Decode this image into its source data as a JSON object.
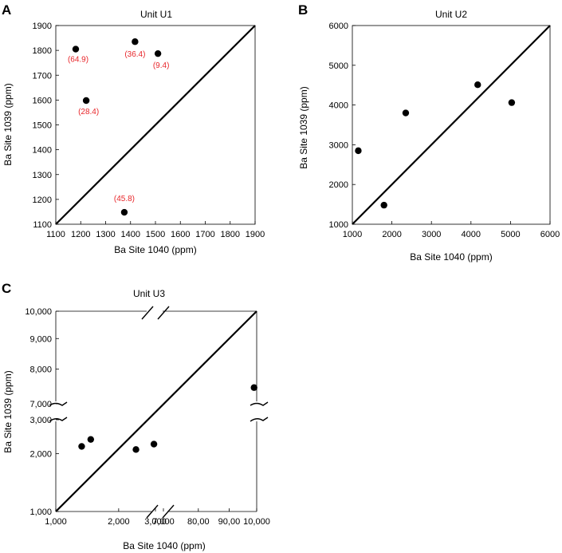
{
  "chart_data": [
    {
      "type": "scatter",
      "panel_letter": "A",
      "title": "Unit U1",
      "xlabel": "Ba Site 1040 (ppm)",
      "ylabel": "Ba Site 1039 (ppm)",
      "xlim": [
        1100,
        1900
      ],
      "ylim": [
        1100,
        1900
      ],
      "xticks": [
        "1100",
        "1200",
        "1300",
        "1400",
        "1500",
        "1600",
        "1700",
        "1800",
        "1900"
      ],
      "yticks": [
        "1100",
        "1200",
        "1300",
        "1400",
        "1500",
        "1600",
        "1700",
        "1800",
        "1900"
      ],
      "reference_line": "1:1",
      "series": [
        {
          "points": [
            {
              "x": 1180,
              "y": 1805,
              "label": "(64.9)"
            },
            {
              "x": 1222,
              "y": 1598,
              "label": "(28.4)"
            },
            {
              "x": 1418,
              "y": 1835,
              "label": "(36.4)"
            },
            {
              "x": 1510,
              "y": 1787,
              "label": "(9.4)"
            },
            {
              "x": 1375,
              "y": 1148,
              "label": "(45.8)"
            }
          ]
        }
      ],
      "annotation_color": "#e8262a"
    },
    {
      "type": "scatter",
      "panel_letter": "B",
      "title": "Unit U2",
      "xlabel": "Ba Site 1040 (ppm)",
      "ylabel": "Ba Site 1039 (ppm)",
      "xlim": [
        1000,
        6000
      ],
      "ylim": [
        1000,
        6000
      ],
      "xticks": [
        "1000",
        "2000",
        "3000",
        "4000",
        "5000",
        "6000"
      ],
      "yticks": [
        "1000",
        "2000",
        "3000",
        "4000",
        "5000",
        "6000"
      ],
      "reference_line": "1:1",
      "series": [
        {
          "points": [
            {
              "x": 1150,
              "y": 2850
            },
            {
              "x": 1800,
              "y": 1480
            },
            {
              "x": 2350,
              "y": 3800
            },
            {
              "x": 4170,
              "y": 4510
            },
            {
              "x": 5030,
              "y": 4060
            }
          ]
        }
      ]
    },
    {
      "type": "scatter",
      "panel_letter": "C",
      "title": "Unit U3",
      "xlabel": "Ba Site 1040 (ppm)",
      "ylabel": "Ba Site 1039 (ppm)",
      "x_scale": "log, broken between 3,000 and 7,000",
      "y_scale": "log, broken between 3,000 and 7,000",
      "xticks": [
        "1,000",
        "2,000",
        "3,000",
        "7,000",
        "80,00",
        "90,00",
        "10,000"
      ],
      "yticks": [
        "1,000",
        "2,000",
        "3,000",
        "7,000",
        "8,000",
        "9,000",
        "10,000"
      ],
      "reference_line": "1:1",
      "series": [
        {
          "points": [
            {
              "x": 1330,
              "y": 2180
            },
            {
              "x": 1470,
              "y": 2370
            },
            {
              "x": 2420,
              "y": 2100
            },
            {
              "x": 2950,
              "y": 2240
            },
            {
              "x": 9900,
              "y": 7450
            }
          ]
        }
      ]
    }
  ]
}
